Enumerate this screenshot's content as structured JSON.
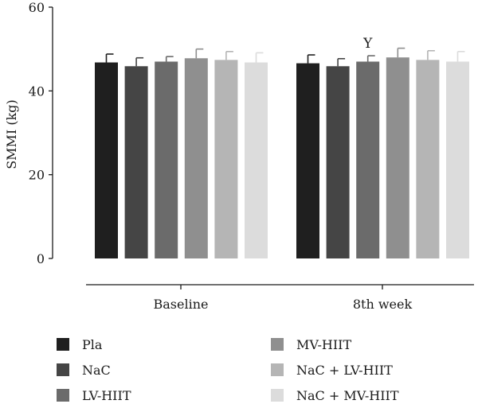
{
  "chart_data": {
    "type": "bar",
    "ylabel": "SMMI (kg)",
    "ylim": [
      0,
      60
    ],
    "yticks": [
      "0",
      "20",
      "40",
      "60"
    ],
    "categories": [
      "Baseline",
      "8th week"
    ],
    "series": [
      {
        "name": "Pla",
        "color": "#1f1f1f",
        "values": [
          46.8,
          46.6
        ],
        "errors": [
          2.0,
          2.0
        ]
      },
      {
        "name": "NaC",
        "color": "#454545",
        "values": [
          45.9,
          45.9
        ],
        "errors": [
          2.0,
          1.8
        ]
      },
      {
        "name": "LV-HIIT",
        "color": "#6b6b6b",
        "values": [
          47.0,
          47.0
        ],
        "errors": [
          1.2,
          1.4
        ]
      },
      {
        "name": "MV-HIIT",
        "color": "#8f8f8f",
        "values": [
          47.8,
          48.0
        ],
        "errors": [
          2.2,
          2.2
        ]
      },
      {
        "name": "NaC + LV-HIIT",
        "color": "#b5b5b5",
        "values": [
          47.4,
          47.4
        ],
        "errors": [
          2.0,
          2.2
        ]
      },
      {
        "name": "NaC + MV-HIIT",
        "color": "#dcdcdc",
        "values": [
          46.8,
          47.0
        ],
        "errors": [
          2.3,
          2.4
        ]
      }
    ],
    "annotations": [
      {
        "text": "Y",
        "category": "8th week",
        "series": "LV-HIIT"
      }
    ],
    "legend": "bottom",
    "grid": false
  }
}
